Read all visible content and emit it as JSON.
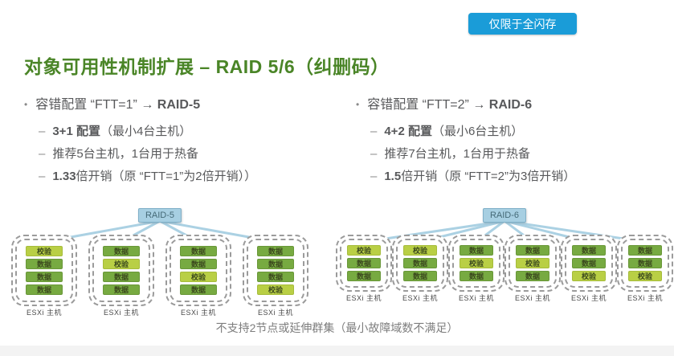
{
  "badge": {
    "label": "仅限于全闪存"
  },
  "title": "对象可用性机制扩展 – RAID 5/6（纠删码）",
  "markers": {
    "bullet": "•",
    "dash": "–"
  },
  "columns": [
    {
      "heading": {
        "pre": "容错配置 “FTT=1” → ",
        "bold": "RAID-5"
      },
      "items": [
        {
          "bold": "3+1 配置",
          "rest": "（最小4台主机）"
        },
        {
          "bold": "",
          "rest": "推荐5台主机，1台用于热备"
        },
        {
          "bold": "1.33",
          "rest": "倍开销（原 “FTT=1”为2倍开销））"
        }
      ]
    },
    {
      "heading": {
        "pre": "容错配置 “FTT=2” → ",
        "bold": "RAID-6"
      },
      "items": [
        {
          "bold": "4+2 配置",
          "rest": "（最小6台主机）"
        },
        {
          "bold": "",
          "rest": "推荐7台主机，1台用于热备"
        },
        {
          "bold": "1.5",
          "rest": "倍开销（原 “FTT=2”为3倍开销）"
        }
      ]
    }
  ],
  "block_labels": {
    "data": "数据",
    "parity": "校验"
  },
  "diagrams": [
    {
      "label": "RAID-5",
      "host_label": "ESXi 主机",
      "hosts": [
        [
          "parity",
          "data",
          "data",
          "data"
        ],
        [
          "data",
          "parity",
          "data",
          "data"
        ],
        [
          "data",
          "data",
          "parity",
          "data"
        ],
        [
          "data",
          "data",
          "data",
          "parity"
        ]
      ]
    },
    {
      "label": "RAID-6",
      "host_label": "ESXi 主机",
      "hosts": [
        [
          "parity",
          "data",
          "data"
        ],
        [
          "parity",
          "data",
          "data"
        ],
        [
          "data",
          "parity",
          "data"
        ],
        [
          "data",
          "parity",
          "data"
        ],
        [
          "data",
          "data",
          "parity"
        ],
        [
          "data",
          "data",
          "parity"
        ]
      ]
    }
  ],
  "footer_note": "不支持2节点或延伸群集（最小故障域数不满足）",
  "colors": {
    "badge_bg": "#1A9CD8",
    "title_green": "#4A8527",
    "body_text": "#58595B",
    "note_text": "#7D7D7D",
    "data_block": "#77AA41",
    "parity_block": "#B9CF45",
    "block_text": "#3C4A1E",
    "raid_label_bg": "#A7CFE2",
    "raid_label_border": "#7FB0C8",
    "raid_label_text": "#456A77",
    "connector": "#A7CFE2",
    "dashed_border": "#9B9B9B"
  }
}
